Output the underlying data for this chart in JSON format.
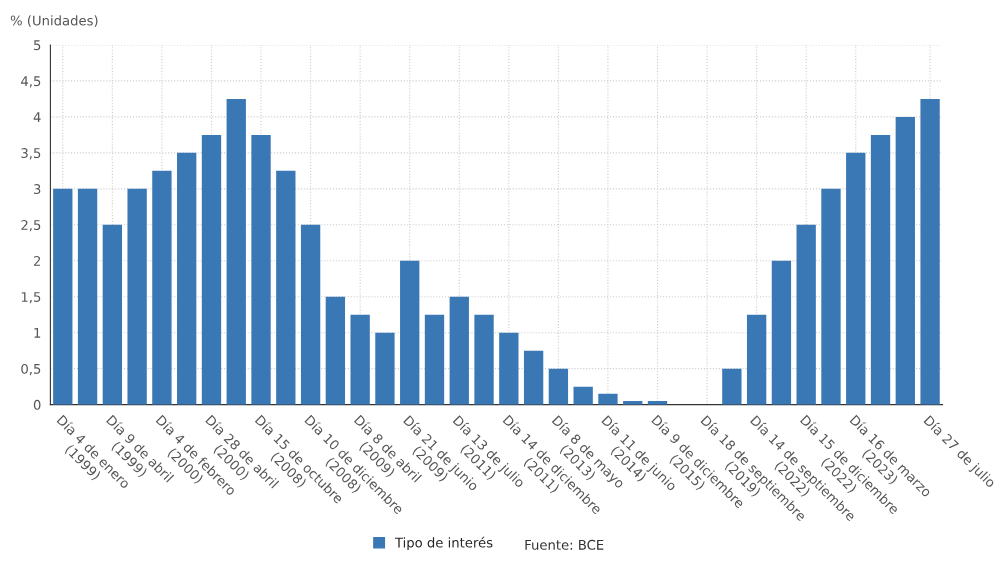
{
  "chart_data": {
    "type": "bar",
    "ylabel": "% (Unidades)",
    "categories": [
      "Día 4 de enero\n(1999)",
      null,
      "Día 9 de abril\n(1999)",
      null,
      "Día 4 de febrero\n(2000)",
      null,
      "Día 28 de abril\n(2000)",
      null,
      "Día 15 de octubre\n(2008)",
      null,
      "Día 10 de diciembre\n(2008)",
      null,
      "Día 8 de abril\n(2009)",
      null,
      "Día 21 de junio\n(2009)",
      null,
      "Día 13 de julio\n(2011)",
      null,
      "Día 14 de diciembre\n(2011)",
      null,
      "Día 8 de mayo\n(2013)",
      null,
      "Día 11 de junio\n(2014)",
      null,
      "Día 9 de diciembre\n(2015)",
      null,
      "Día 18 de septiembre\n(2019)",
      null,
      "Día 14 de septiembre\n(2022)",
      null,
      "Día 15 de diciembre\n(2022)",
      null,
      "Día 16 de marzo\n(2023)",
      null,
      null,
      "Día 27 de julio"
    ],
    "series": [
      {
        "name": "Tipo de interés",
        "color": "#3a78b5",
        "values": [
          3,
          3,
          2.5,
          3,
          3.25,
          3.5,
          3.75,
          4.25,
          3.75,
          3.25,
          2.5,
          1.5,
          1.25,
          1,
          2,
          1.25,
          1.5,
          1.25,
          1,
          0.75,
          0.5,
          0.25,
          0.15,
          0.05,
          0.05,
          0,
          0,
          0.5,
          1.25,
          2,
          2.5,
          3,
          3.5,
          3.75,
          4,
          4.25
        ]
      }
    ],
    "ylim": [
      0,
      5
    ],
    "yticks": [
      0,
      {
        "value": 0.5,
        "label": "0,5"
      },
      1,
      {
        "value": 1.5,
        "label": "1,5"
      },
      2,
      {
        "value": 2.5,
        "label": "2,5"
      },
      3,
      {
        "value": 3.5,
        "label": "3,5"
      },
      4,
      {
        "value": 4.5,
        "label": "4,5"
      },
      5
    ],
    "grid": true,
    "legend": "bottom",
    "annotations": [
      "Fuente: BCE"
    ]
  }
}
